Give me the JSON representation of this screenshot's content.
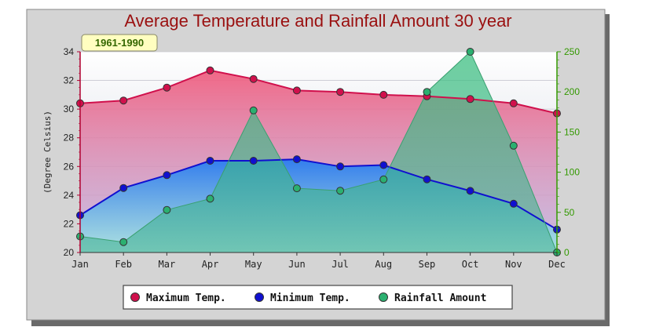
{
  "chart_data": {
    "type": "area",
    "title": "Average Temperature and Rainfall Amount 30 year",
    "subtitle": "1961-1990",
    "categories": [
      "Jan",
      "Feb",
      "Mar",
      "Apr",
      "May",
      "Jun",
      "Jul",
      "Aug",
      "Sep",
      "Oct",
      "Nov",
      "Dec"
    ],
    "y_left": {
      "label": "(Degree Celsius)",
      "ticks": [
        "20",
        "22",
        "24",
        "26",
        "28",
        "30",
        "32",
        "34"
      ],
      "range": [
        20,
        34
      ]
    },
    "y_right": {
      "label": "",
      "ticks": [
        "0",
        "50",
        "100",
        "150",
        "200",
        "250"
      ],
      "range": [
        0,
        250
      ]
    },
    "series": [
      {
        "name": "Maximum Temp.",
        "axis": "left",
        "color": "#d0104c",
        "values": [
          30.4,
          30.6,
          31.5,
          32.7,
          32.1,
          31.3,
          31.2,
          31.0,
          30.9,
          30.7,
          30.4,
          29.7
        ]
      },
      {
        "name": "Minimum Temp.",
        "axis": "left",
        "color": "#1010d0",
        "values": [
          22.6,
          24.5,
          25.4,
          26.4,
          26.4,
          26.5,
          26.0,
          26.1,
          25.1,
          24.3,
          23.4,
          21.6
        ]
      },
      {
        "name": "Rainfall Amount",
        "axis": "right",
        "color": "#22a060",
        "values": [
          20,
          13,
          53,
          67,
          177,
          80,
          77,
          91,
          200,
          250,
          133,
          0
        ]
      }
    ],
    "legend": {
      "position": "bottom"
    },
    "grid": true
  }
}
